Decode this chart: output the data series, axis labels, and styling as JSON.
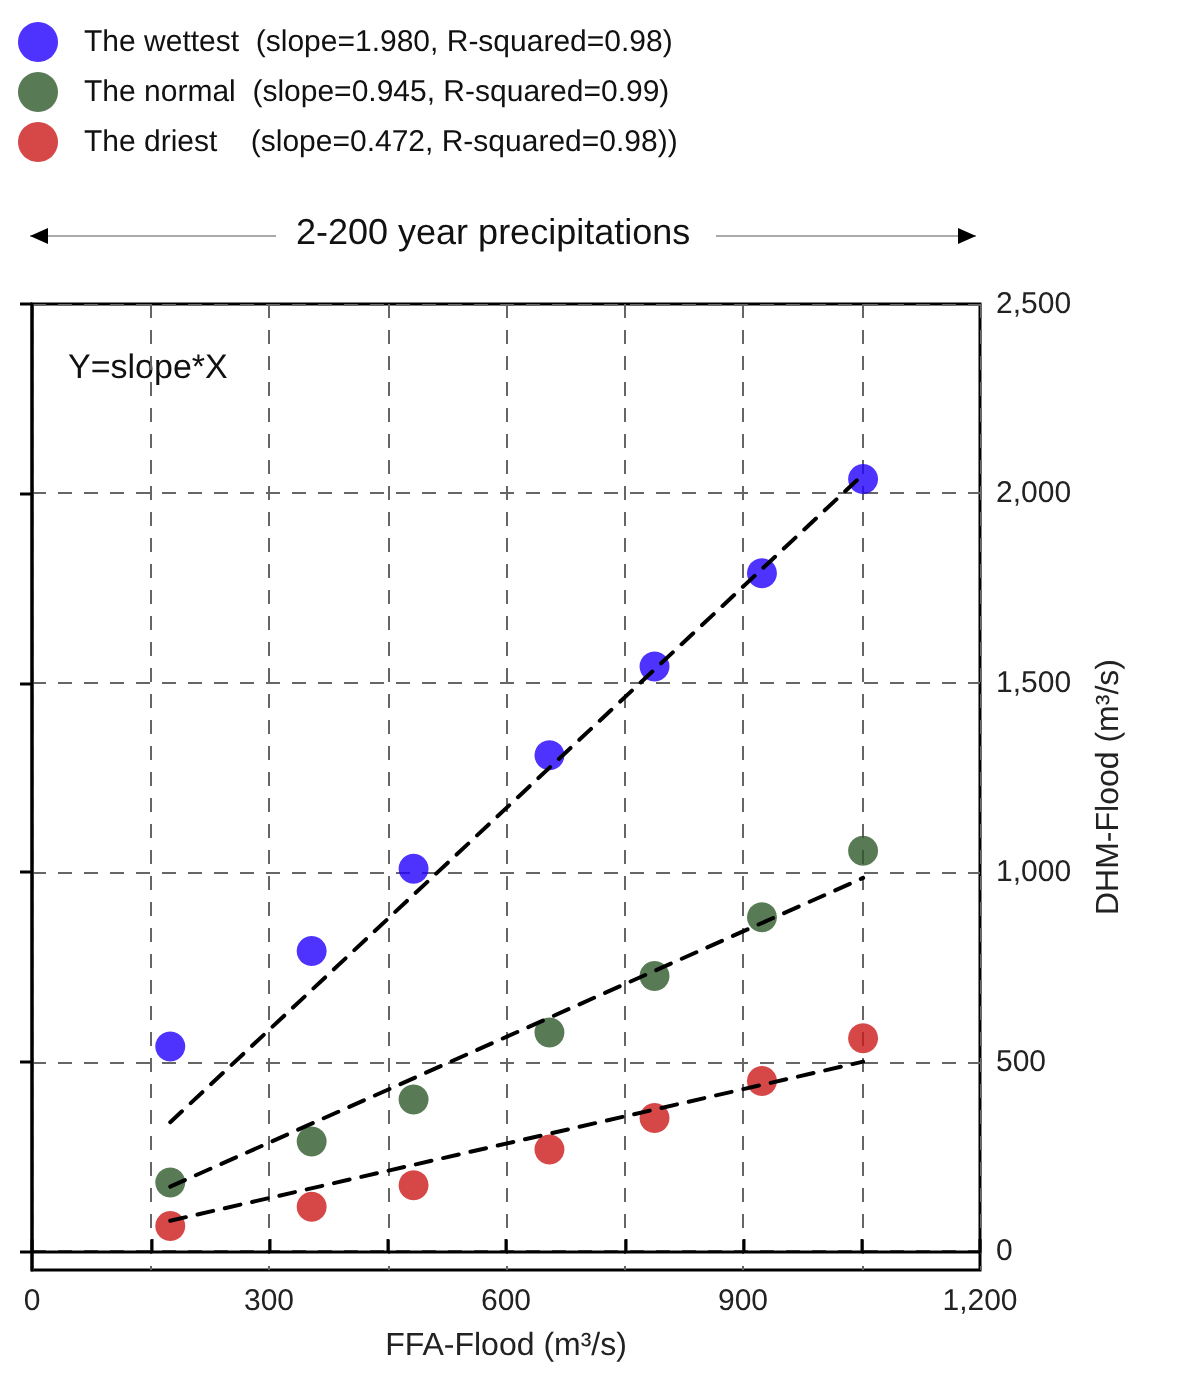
{
  "chart_data": {
    "type": "scatter",
    "annotations": [
      "2-200 year precipitations",
      "Y=slope*X"
    ],
    "xlabel": "FFA-Flood (m³/s)",
    "ylabel": "DHM-Flood (m³/s)",
    "x": [
      175,
      354,
      483,
      655,
      788,
      924,
      1052
    ],
    "series": [
      {
        "name": "The wettest  (slope=1.980, R-squared=0.98)",
        "color": "#2200ff",
        "values": [
          540,
          792,
          1009,
          1309,
          1543,
          1789,
          2038
        ]
      },
      {
        "name": "The normal  (slope=0.945, R-squared=0.99)",
        "color": "#2e5a2a",
        "values": [
          181,
          289,
          400,
          577,
          726,
          881,
          1057
        ]
      },
      {
        "name": "The driest    (slope=0.472, R-squared=0.98))",
        "color": "#cc1a1a",
        "values": [
          66,
          117,
          174,
          268,
          351,
          449,
          562
        ]
      },
      {
        "type": "line",
        "color": "#000000",
        "line_style": "dashed",
        "marker": "none",
        "values": [
          340,
          null,
          null,
          null,
          null,
          null,
          2050
        ]
      },
      {
        "type": "line",
        "color": "#000000",
        "line_style": "dashed",
        "marker": "none",
        "values": [
          170,
          null,
          null,
          null,
          null,
          null,
          985
        ]
      },
      {
        "type": "line",
        "color": "#000000",
        "line_style": "dashed",
        "marker": "none",
        "values": [
          80,
          null,
          null,
          null,
          null,
          null,
          500
        ]
      }
    ],
    "marker": "circle",
    "xlim": [
      0,
      1200
    ],
    "xticks": [
      0,
      {
        "value": 150,
        "label": null
      },
      300,
      {
        "value": 450,
        "label": null
      },
      600,
      {
        "value": 750,
        "label": null
      },
      900,
      {
        "value": 1050,
        "label": null
      },
      {
        "value": 1200,
        "label": "1,200"
      }
    ],
    "ylim": [
      -50,
      2500
    ],
    "yticks": [
      0,
      500,
      {
        "value": 1000,
        "label": "1,000"
      },
      {
        "value": 1500,
        "label": "1,500"
      },
      {
        "value": 2000,
        "label": "2,000"
      },
      {
        "value": 2500,
        "label": "2,500"
      }
    ],
    "grid": true,
    "legend": "top left"
  }
}
